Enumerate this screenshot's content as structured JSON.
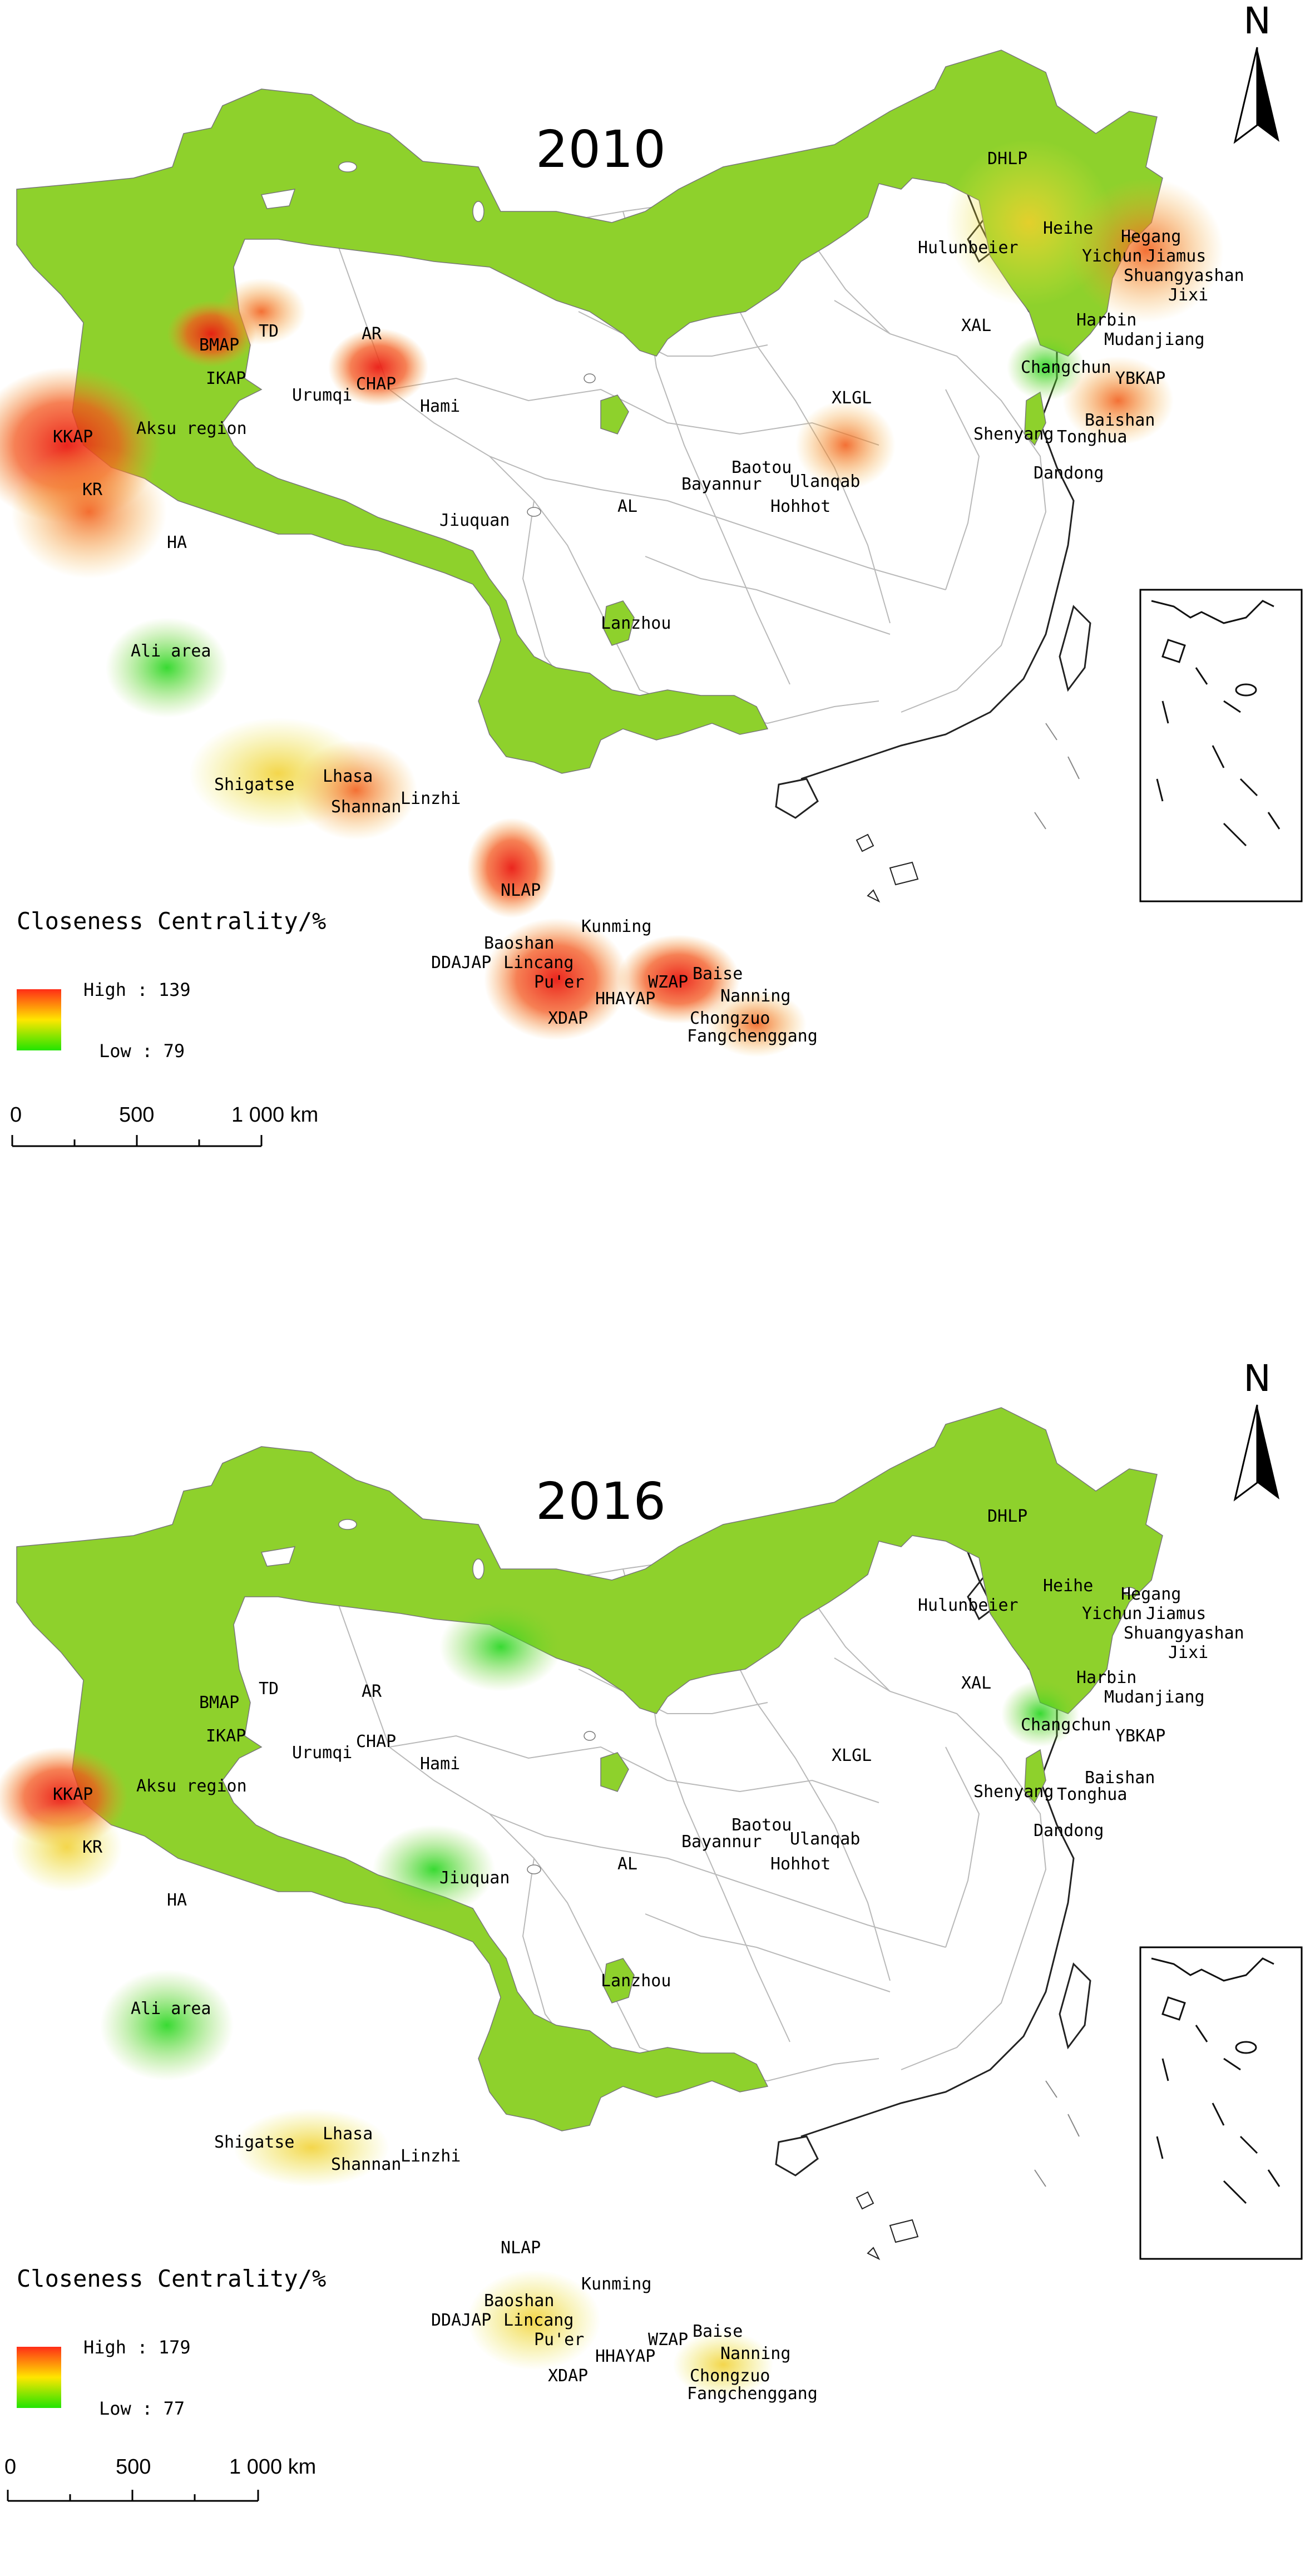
{
  "maps": [
    {
      "year": "2010",
      "legend": {
        "title": "Closeness Centrality/%",
        "high_label": "High : 139",
        "low_label": "Low : 79"
      },
      "scale": {
        "ticks": [
          "0",
          "500",
          "1 000 km"
        ]
      },
      "north": "N",
      "labels": {
        "dhlp": "DHLP",
        "heihe": "Heihe",
        "hegang": "Hegang",
        "yichun": "Yichun",
        "jiamus": "Jiamus",
        "shuangyashan": "Shuangyashan",
        "jixi": "Jixi",
        "hulunbeier": "Hulunbeier",
        "harbin": "Harbin",
        "mudanjiang": "Mudanjiang",
        "xal": "XAL",
        "changchun": "Changchun",
        "ybkap": "YBKAP",
        "baishan": "Baishan",
        "shenyang": "Shenyang",
        "tonghua": "Tonghua",
        "dandong": "Dandong",
        "xlgl": "XLGL",
        "baotou": "Baotou",
        "ulanqab": "Ulanqab",
        "bayannur": "Bayannur",
        "hohhot": "Hohhot",
        "al": "AL",
        "jiuquan": "Jiuquan",
        "hami": "Hami",
        "lanzhou": "Lanzhou",
        "td": "TD",
        "ar": "AR",
        "bmap": "BMAP",
        "ikap": "IKAP",
        "chap": "CHAP",
        "urumqi": "Urumqi",
        "kkap": "KKAP",
        "aksu": "Aksu region",
        "kr": "KR",
        "ha": "HA",
        "ali": "Ali area",
        "shigatse": "Shigatse",
        "lhasa": "Lhasa",
        "shannan": "Shannan",
        "linzhi": "Linzhi",
        "nlap": "NLAP",
        "kunming": "Kunming",
        "baoshan": "Baoshan",
        "ddajap": "DDAJAP",
        "lincang": "Lincang",
        "puer": "Pu'er",
        "xdap": "XDAP",
        "hhayap": "HHAYAP",
        "wzap": "WZAP",
        "baise": "Baise",
        "nanning": "Nanning",
        "chongzuo": "Chongzuo",
        "fangchenggang": "Fangchenggang"
      }
    },
    {
      "year": "2016",
      "legend": {
        "title": "Closeness Centrality/%",
        "high_label": "High : 179",
        "low_label": "Low : 77"
      },
      "scale": {
        "ticks": [
          "0",
          "500",
          "1 000 km"
        ]
      },
      "north": "N",
      "labels": {
        "dhlp": "DHLP",
        "heihe": "Heihe",
        "hegang": "Hegang",
        "yichun": "Yichun",
        "jiamus": "Jiamus",
        "shuangyashan": "Shuangyashan",
        "jixi": "Jixi",
        "hulunbeier": "Hulunbeier",
        "harbin": "Harbin",
        "mudanjiang": "Mudanjiang",
        "xal": "XAL",
        "changchun": "Changchun",
        "ybkap": "YBKAP",
        "baishan": "Baishan",
        "shenyang": "Shenyang",
        "tonghua": "Tonghua",
        "dandong": "Dandong",
        "xlgl": "XLGL",
        "baotou": "Baotou",
        "ulanqab": "Ulanqab",
        "bayannur": "Bayannur",
        "hohhot": "Hohhot",
        "al": "AL",
        "jiuquan": "Jiuquan",
        "hami": "Hami",
        "lanzhou": "Lanzhou",
        "td": "TD",
        "ar": "AR",
        "bmap": "BMAP",
        "ikap": "IKAP",
        "chap": "CHAP",
        "urumqi": "Urumqi",
        "kkap": "KKAP",
        "aksu": "Aksu region",
        "kr": "KR",
        "ha": "HA",
        "ali": "Ali area",
        "shigatse": "Shigatse",
        "lhasa": "Lhasa",
        "shannan": "Shannan",
        "linzhi": "Linzhi",
        "nlap": "NLAP",
        "kunming": "Kunming",
        "baoshan": "Baoshan",
        "ddajap": "DDAJAP",
        "lincang": "Lincang",
        "puer": "Pu'er",
        "xdap": "XDAP",
        "hhayap": "HHAYAP",
        "wzap": "WZAP",
        "baise": "Baise",
        "nanning": "Nanning",
        "chongzuo": "Chongzuo",
        "fangchenggang": "Fangchenggang"
      }
    }
  ]
}
